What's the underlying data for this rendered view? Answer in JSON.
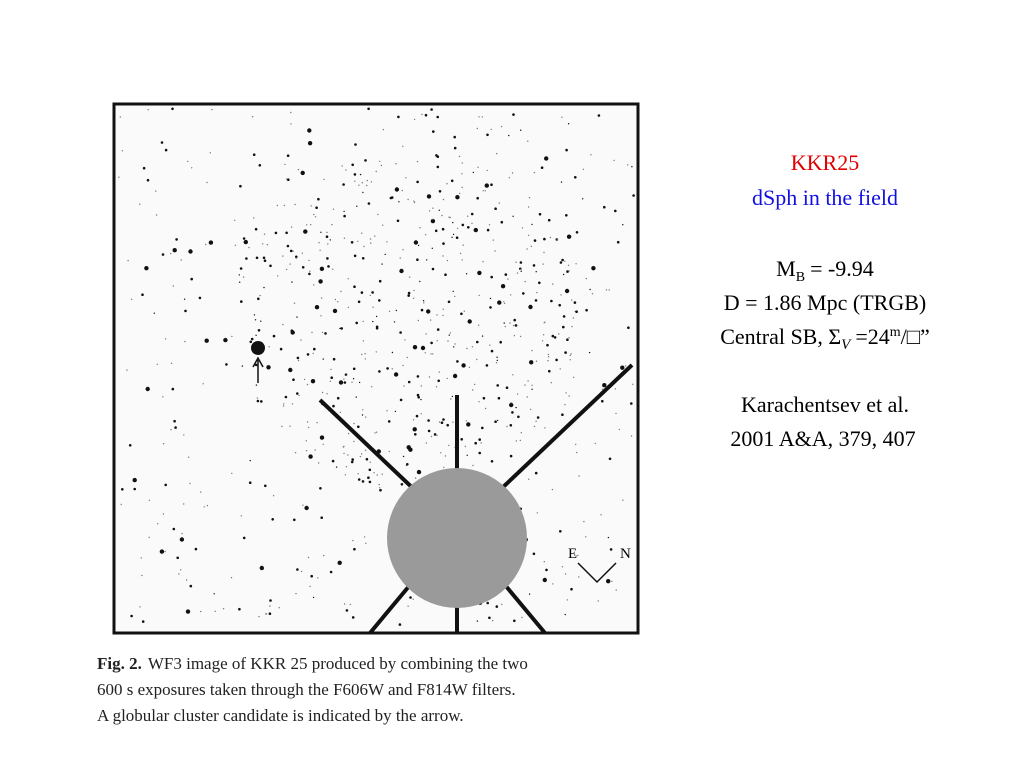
{
  "slide": {
    "title": "KKR25",
    "subtitle": "dSph in the field",
    "magnitude": {
      "symbol": "M",
      "subscript": "B",
      "value": "= -9.94"
    },
    "distance": "D = 1.86 Mpc (TRGB)",
    "surface_brightness": {
      "label": "Central SB, Σ",
      "subscript": "V",
      "value": "=24",
      "superscript": "m",
      "unit": "/□”"
    },
    "reference": [
      "Karachentsev et al.",
      "2001 A&A, 379, 407"
    ],
    "image": {
      "compass": {
        "east": "E",
        "north": "N"
      }
    },
    "caption": {
      "label": "Fig. 2.",
      "lines": [
        "WF3 image of KKR 25 produced by combining the two",
        "600 s exposures taken through the F606W and F814W filters.",
        "A globular cluster candidate is indicated by the arrow."
      ]
    }
  }
}
